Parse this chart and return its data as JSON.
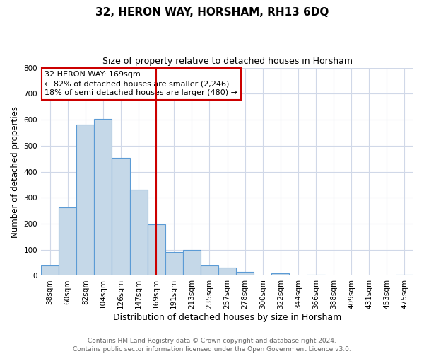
{
  "title": "32, HERON WAY, HORSHAM, RH13 6DQ",
  "subtitle": "Size of property relative to detached houses in Horsham",
  "xlabel": "Distribution of detached houses by size in Horsham",
  "ylabel": "Number of detached properties",
  "bar_labels": [
    "38sqm",
    "60sqm",
    "82sqm",
    "104sqm",
    "126sqm",
    "147sqm",
    "169sqm",
    "191sqm",
    "213sqm",
    "235sqm",
    "257sqm",
    "278sqm",
    "300sqm",
    "322sqm",
    "344sqm",
    "366sqm",
    "388sqm",
    "409sqm",
    "431sqm",
    "453sqm",
    "475sqm"
  ],
  "bar_values": [
    38,
    263,
    582,
    603,
    453,
    330,
    197,
    90,
    100,
    38,
    32,
    15,
    0,
    10,
    0,
    5,
    0,
    0,
    0,
    0,
    5
  ],
  "bar_color": "#c5d8e8",
  "bar_edge_color": "#5b9bd5",
  "marker_index": 6,
  "marker_color": "#cc0000",
  "ylim": [
    0,
    800
  ],
  "yticks": [
    0,
    100,
    200,
    300,
    400,
    500,
    600,
    700,
    800
  ],
  "annotation_line1": "32 HERON WAY: 169sqm",
  "annotation_line2": "← 82% of detached houses are smaller (2,246)",
  "annotation_line3": "18% of semi-detached houses are larger (480) →",
  "footer1": "Contains HM Land Registry data © Crown copyright and database right 2024.",
  "footer2": "Contains public sector information licensed under the Open Government Licence v3.0.",
  "background_color": "#ffffff",
  "grid_color": "#d0d8e8",
  "title_fontsize": 11,
  "subtitle_fontsize": 9,
  "ylabel_fontsize": 8.5,
  "xlabel_fontsize": 9,
  "tick_fontsize": 7.5,
  "annotation_fontsize": 8,
  "footer_fontsize": 6.5
}
